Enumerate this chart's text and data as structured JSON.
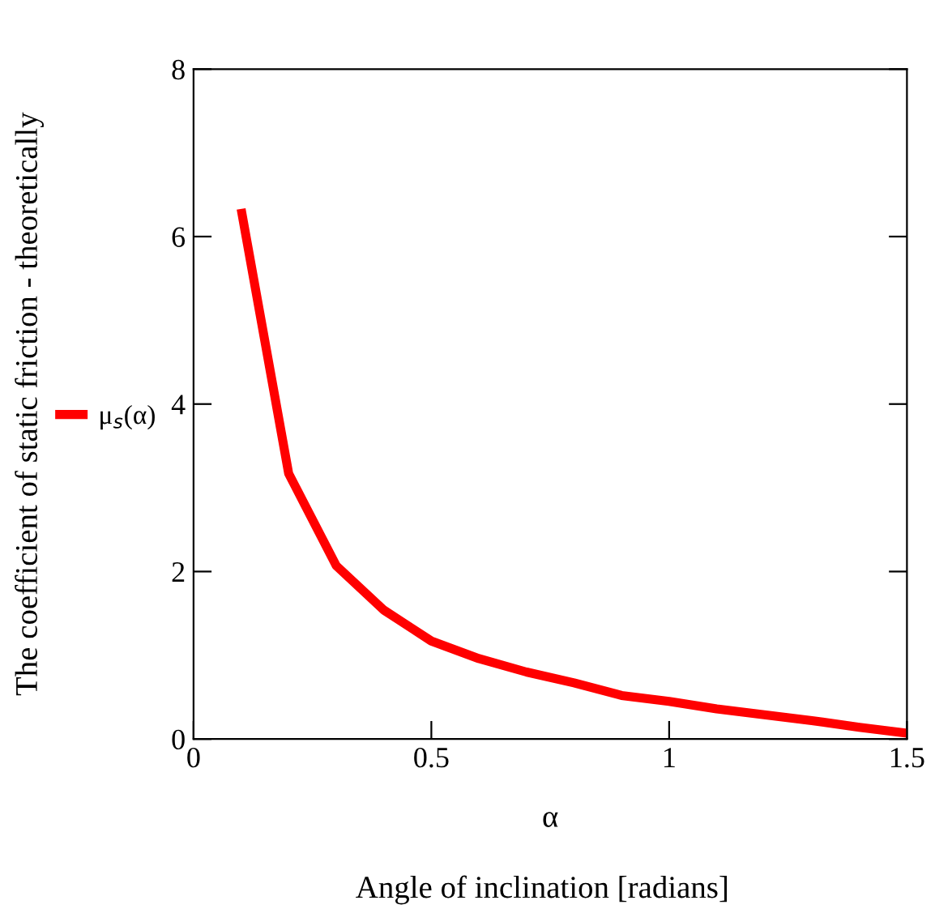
{
  "chart_data": {
    "type": "line",
    "xlabel": "α",
    "ylabel": "The coefficient of static friction - theoretically",
    "annotations": [
      "Angle of inclination [radians]"
    ],
    "x": [
      0.1,
      0.2,
      0.3,
      0.4,
      0.5,
      0.6,
      0.7,
      0.8,
      0.9,
      1.0,
      1.1,
      1.2,
      1.3,
      1.4,
      1.5
    ],
    "series": [
      {
        "name": "μ$_{s}$(α)",
        "color": "#ff0000",
        "values": [
          6.33,
          3.17,
          2.07,
          1.54,
          1.17,
          0.96,
          0.8,
          0.67,
          0.52,
          0.45,
          0.36,
          0.29,
          0.22,
          0.14,
          0.07
        ]
      }
    ],
    "xlim": [
      0,
      1.5
    ],
    "xticks": [
      0,
      0.5,
      1,
      1.5
    ],
    "ylim": [
      0,
      8
    ],
    "yticks": [
      0,
      2,
      4,
      6,
      8
    ],
    "grid": false,
    "legend": "left",
    "marker": "none",
    "line_style": "solid"
  }
}
